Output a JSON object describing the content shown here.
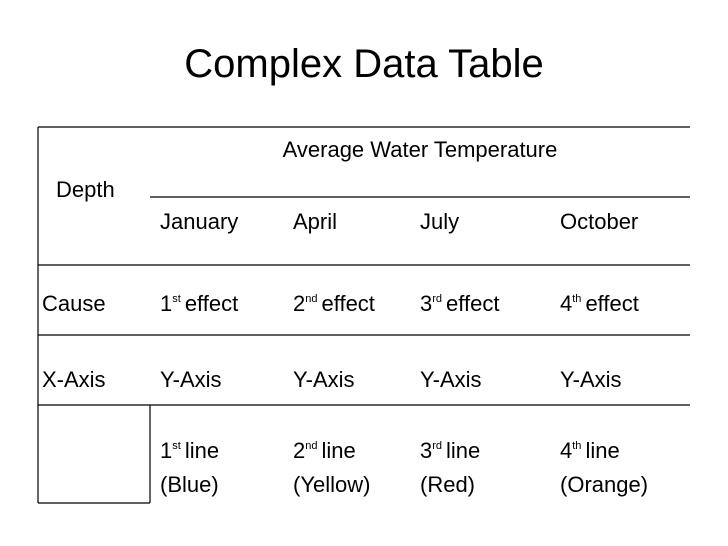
{
  "title": "Complex Data Table",
  "table": {
    "header": {
      "row_label": "Depth",
      "group": "Average Water Temperature",
      "columns": [
        "January",
        "April",
        "July",
        "October"
      ]
    },
    "rows": [
      {
        "label": "Cause",
        "cells": [
          {
            "num": "1",
            "sup": "st",
            "text": "effect"
          },
          {
            "num": "2",
            "sup": "nd",
            "text": "effect"
          },
          {
            "num": "3",
            "sup": "rd",
            "text": "effect"
          },
          {
            "num": "4",
            "sup": "th",
            "text": "effect"
          }
        ]
      },
      {
        "label": "X-Axis",
        "cells": [
          "Y-Axis",
          "Y-Axis",
          "Y-Axis",
          "Y-Axis"
        ]
      },
      {
        "cells": [
          {
            "num": "1",
            "sup": "st",
            "text": "line",
            "note": "(Blue)"
          },
          {
            "num": "2",
            "sup": "nd",
            "text": "line",
            "note": "(Yellow)"
          },
          {
            "num": "3",
            "sup": "rd",
            "text": "line",
            "note": "(Red)"
          },
          {
            "num": "4",
            "sup": "th",
            "text": "line",
            "note": "(Orange)"
          }
        ]
      }
    ]
  }
}
